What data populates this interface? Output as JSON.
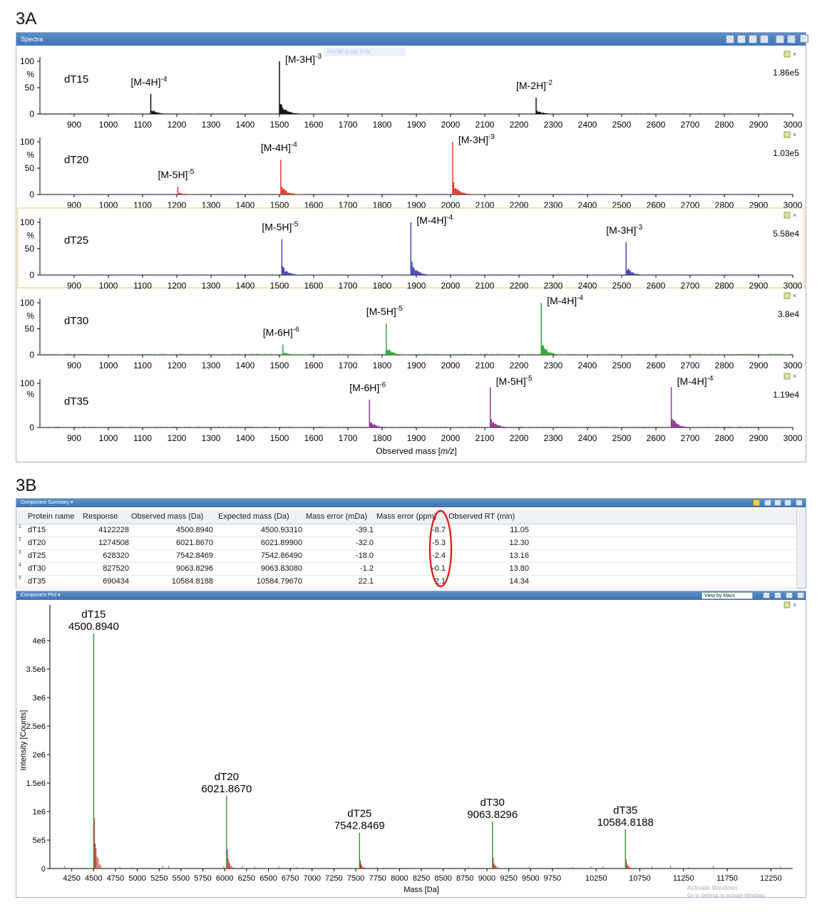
{
  "panel_a_label": "3A",
  "panel_b_label": "3B",
  "spectra_window": {
    "title": "Spectra",
    "ghost_text": "Rectangular Snip"
  },
  "summary_window": {
    "title": "Component Summary ▾"
  },
  "plot_window": {
    "title": "Component Plot ▾",
    "view_select": "View by Mass"
  },
  "watermark": {
    "line1": "Activate Windows",
    "line2": "Go to Settings to activate Windows."
  },
  "chart_data": [
    {
      "type": "line",
      "title": "",
      "xlabel": "Observed mass [m/z]",
      "xlim": [
        800,
        3000
      ],
      "x_ticks": [
        900,
        1000,
        1100,
        1200,
        1300,
        1400,
        1500,
        1600,
        1700,
        1800,
        1900,
        2000,
        2100,
        2200,
        2300,
        2400,
        2500,
        2600,
        2700,
        2800,
        2900,
        3000
      ],
      "ylim": [
        0,
        100
      ],
      "y_ticks": [
        "100",
        "%",
        "50",
        "0"
      ],
      "series": [
        {
          "name": "dT15",
          "color": "#000000",
          "max_intensity": "1.86e5",
          "peaks": [
            {
              "x": 1124,
              "y": 38,
              "label": "[M-4H]",
              "charge": "-4"
            },
            {
              "x": 1500,
              "y": 100,
              "label": "[M-3H]",
              "charge": "-3"
            },
            {
              "x": 2250,
              "y": 31,
              "label": "[M-2H]",
              "charge": "-2"
            }
          ]
        },
        {
          "name": "dT20",
          "color": "#e0312b",
          "max_intensity": "1.03e5",
          "peaks": [
            {
              "x": 1203,
              "y": 15,
              "label": "[M-5H]",
              "charge": "-5"
            },
            {
              "x": 1504,
              "y": 66,
              "label": "[M-4H]",
              "charge": "-4"
            },
            {
              "x": 2006,
              "y": 100,
              "label": "[M-3H]",
              "charge": "-3"
            }
          ]
        },
        {
          "name": "dT25",
          "color": "#3a3fb0",
          "max_intensity": "5.58e4",
          "peaks": [
            {
              "x": 1507,
              "y": 68,
              "label": "[M-5H]",
              "charge": "-5"
            },
            {
              "x": 1884,
              "y": 100,
              "label": "[M-4H]",
              "charge": "-4"
            },
            {
              "x": 2513,
              "y": 62,
              "label": "[M-3H]",
              "charge": "-3"
            }
          ]
        },
        {
          "name": "dT30",
          "color": "#2aa02a",
          "max_intensity": "3.8e4",
          "peaks": [
            {
              "x": 1510,
              "y": 20,
              "label": "[M-6H]",
              "charge": "-6"
            },
            {
              "x": 1812,
              "y": 60,
              "label": "[M-5H]",
              "charge": "-5"
            },
            {
              "x": 2265,
              "y": 100,
              "label": "[M-4H]",
              "charge": "-4"
            }
          ]
        },
        {
          "name": "dT35",
          "color": "#8a2e8e",
          "max_intensity": "1.19e4",
          "peaks": [
            {
              "x": 1763,
              "y": 63,
              "label": "[M-6H]",
              "charge": "-6"
            },
            {
              "x": 2116,
              "y": 91,
              "label": "[M-5H]",
              "charge": "-5"
            },
            {
              "x": 2645,
              "y": 91,
              "label": "[M-4H]",
              "charge": "-4"
            }
          ]
        }
      ]
    },
    {
      "type": "table",
      "columns": [
        "Protein name",
        "Response",
        "Observed mass (Da)",
        "Expected mass (Da)",
        "Mass error (mDa)",
        "Mass error (ppm)",
        "Observed RT (min)"
      ],
      "rows": [
        {
          "idx": "1",
          "cells": [
            "dT15",
            "4122228",
            "4500.8940",
            "4500.93310",
            "-39.1",
            "-8.7",
            "11.05"
          ]
        },
        {
          "idx": "2",
          "cells": [
            "dT20",
            "1274508",
            "6021.8670",
            "6021.89900",
            "-32.0",
            "-5.3",
            "12.30"
          ]
        },
        {
          "idx": "3",
          "cells": [
            "dT25",
            "628320",
            "7542.8469",
            "7542.86490",
            "-18.0",
            "-2.4",
            "13.16"
          ]
        },
        {
          "idx": "4",
          "cells": [
            "dT30",
            "827520",
            "9063.8296",
            "9063.83080",
            "-1.2",
            "-0.1",
            "13.80"
          ]
        },
        {
          "idx": "5",
          "cells": [
            "dT35",
            "690434",
            "10584.8188",
            "10584.79670",
            "22.1",
            "2.1",
            "14.34"
          ]
        }
      ]
    },
    {
      "type": "bar",
      "xlabel": "Mass [Da]",
      "ylabel": "Intensity [Counts]",
      "xlim": [
        4000,
        12500
      ],
      "x_ticks": [
        4250,
        4500,
        4750,
        5000,
        5250,
        5500,
        5750,
        6000,
        6250,
        6500,
        6750,
        7000,
        7250,
        7500,
        7750,
        8000,
        8250,
        8500,
        8750,
        9000,
        9250,
        9500,
        9750,
        10250,
        10750,
        11250,
        11750,
        12250
      ],
      "ylim": [
        0,
        4500000
      ],
      "y_ticks": [
        {
          "value": 0,
          "label": "0"
        },
        {
          "value": 500000,
          "label": "5e5"
        },
        {
          "value": 1000000,
          "label": "1e6"
        },
        {
          "value": 1500000,
          "label": "1.5e6"
        },
        {
          "value": 2000000,
          "label": "2e6"
        },
        {
          "value": 2500000,
          "label": "2.5e6"
        },
        {
          "value": 3000000,
          "label": "3e6"
        },
        {
          "value": 3500000,
          "label": "3.5e6"
        },
        {
          "value": 4000000,
          "label": "4e6"
        }
      ],
      "main_peaks": [
        {
          "name": "dT15",
          "mass_label": "4500.8940",
          "x": 4500.894,
          "y": 4122228
        },
        {
          "name": "dT20",
          "mass_label": "6021.8670",
          "x": 6021.867,
          "y": 1274508
        },
        {
          "name": "dT25",
          "mass_label": "7542.8469",
          "x": 7542.8469,
          "y": 628320
        },
        {
          "name": "dT30",
          "mass_label": "9063.8296",
          "x": 9063.8296,
          "y": 827520
        },
        {
          "name": "dT35",
          "mass_label": "10584.8188",
          "x": 10584.8188,
          "y": 690434
        }
      ],
      "colors": {
        "main": "#2e9a2e",
        "minor": "#c23a3a"
      }
    }
  ]
}
